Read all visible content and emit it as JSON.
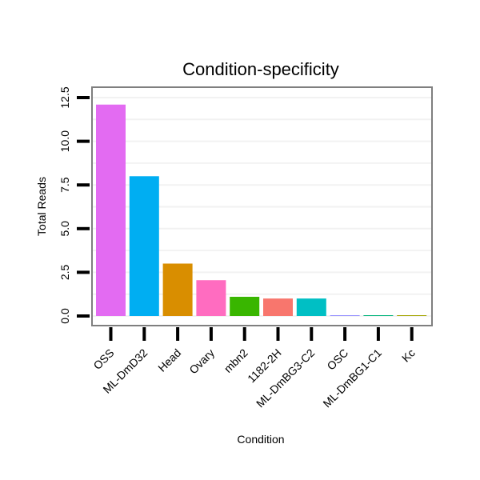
{
  "chart_data": {
    "type": "bar",
    "title": "Condition-specificity",
    "xlabel": "Condition",
    "ylabel": "Total Reads",
    "ylim": [
      0,
      12.5
    ],
    "yticks": [
      0.0,
      2.5,
      5.0,
      7.5,
      10.0,
      12.5
    ],
    "ytick_labels": [
      "0.0",
      "2.5",
      "5.0",
      "7.5",
      "10.0",
      "12.5"
    ],
    "grid": true,
    "categories": [
      "OSS",
      "ML-DmD32",
      "Head",
      "Ovary",
      "mbn2",
      "1182-2H",
      "ML-DmBG3-C2",
      "OSC",
      "ML-DmBG1-C1",
      "Kc"
    ],
    "values": [
      12.1,
      8.0,
      3.0,
      2.05,
      1.1,
      1.0,
      1.0,
      0.04,
      0.04,
      0.04
    ],
    "colors": [
      "#E36BF2",
      "#00AEF2",
      "#D98E00",
      "#FF6CC0",
      "#39B600",
      "#F8766D",
      "#00BFC4",
      "#9590FF",
      "#00B47A",
      "#A3A500"
    ]
  }
}
